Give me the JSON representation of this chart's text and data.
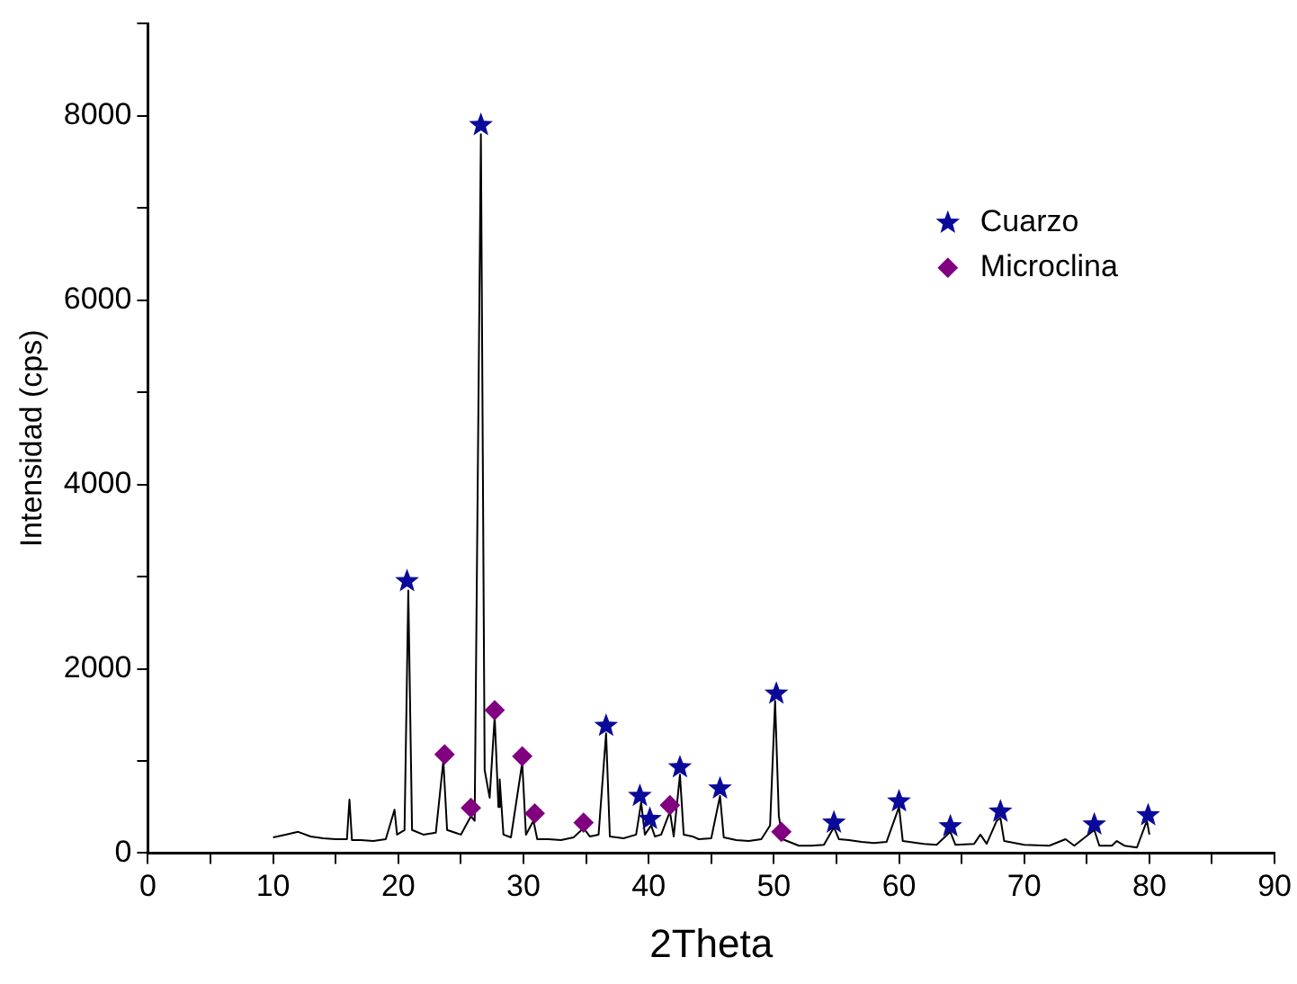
{
  "chart_data": {
    "type": "line",
    "xlabel": "2Theta",
    "ylabel": "Intensidad (cps)",
    "xlim": [
      0,
      90
    ],
    "ylim": [
      0,
      9000
    ],
    "xticks": [
      0,
      {
        "value": 5,
        "label": null
      },
      10,
      {
        "value": 15,
        "label": null
      },
      20,
      {
        "value": 25,
        "label": null
      },
      30,
      {
        "value": 35,
        "label": null
      },
      40,
      {
        "value": 45,
        "label": null
      },
      50,
      {
        "value": 55,
        "label": null
      },
      60,
      {
        "value": 65,
        "label": null
      },
      70,
      {
        "value": 75,
        "label": null
      },
      80,
      {
        "value": 85,
        "label": null
      },
      90
    ],
    "yticks": [
      0,
      {
        "value": 1000,
        "label": null
      },
      2000,
      {
        "value": 3000,
        "label": null
      },
      4000,
      {
        "value": 5000,
        "label": null
      },
      6000,
      {
        "value": 7000,
        "label": null
      },
      8000,
      {
        "value": 9000,
        "label": null
      }
    ],
    "grid": false,
    "legend": "top right",
    "line_style": "solid",
    "series": [
      {
        "color": "#000000",
        "marker": "none",
        "x": [
          10,
          11,
          12,
          13,
          14,
          15,
          15.9,
          16.1,
          16.3,
          17,
          18,
          19,
          19.7,
          19.9,
          20.5,
          20.8,
          21.1,
          22,
          23,
          23.6,
          23.9,
          25,
          25.8,
          26.1,
          26.6,
          26.9,
          27.3,
          27.7,
          28.0,
          28.1,
          28.4,
          29,
          29.9,
          30.2,
          30.8,
          31.1,
          32,
          33,
          34,
          34.8,
          35.3,
          36,
          36.6,
          36.9,
          38,
          39,
          39.4,
          39.7,
          40.2,
          40.5,
          41,
          41.7,
          42,
          42.5,
          42.8,
          43.5,
          44,
          45,
          45.7,
          46,
          47,
          48,
          49,
          49.7,
          50.1,
          50.4,
          50.7,
          52,
          53,
          54,
          54.8,
          55.2,
          56,
          57,
          58,
          59,
          60,
          60.3,
          62,
          63,
          64.1,
          64.5,
          66,
          66.5,
          67,
          67.8,
          68.1,
          68.4,
          70,
          72,
          73.3,
          74,
          75.6,
          76,
          77,
          77.4,
          78,
          79,
          79.8,
          80
        ],
        "values": [
          170,
          200,
          230,
          180,
          160,
          150,
          150,
          580,
          140,
          140,
          130,
          150,
          470,
          200,
          250,
          2850,
          250,
          200,
          220,
          1000,
          250,
          200,
          400,
          350,
          7800,
          900,
          600,
          1480,
          500,
          800,
          200,
          170,
          980,
          200,
          350,
          150,
          150,
          140,
          170,
          270,
          180,
          200,
          1300,
          180,
          160,
          200,
          550,
          200,
          300,
          180,
          200,
          450,
          180,
          850,
          200,
          180,
          150,
          160,
          620,
          170,
          140,
          130,
          150,
          300,
          1650,
          400,
          150,
          80,
          80,
          90,
          280,
          150,
          140,
          120,
          110,
          120,
          500,
          130,
          100,
          90,
          230,
          90,
          100,
          200,
          100,
          350,
          380,
          130,
          90,
          80,
          150,
          80,
          250,
          80,
          80,
          130,
          80,
          60,
          350,
          200
        ]
      },
      {
        "type": "scatter",
        "name": "Cuarzo",
        "color": "#0a0a9a",
        "marker": "star",
        "x": [
          20.7,
          26.6,
          36.6,
          39.3,
          40.1,
          42.5,
          45.7,
          50.2,
          54.8,
          60.0,
          64.1,
          68.1,
          75.6,
          79.9
        ],
        "values": [
          2950,
          7900,
          1380,
          620,
          370,
          930,
          700,
          1730,
          330,
          560,
          290,
          450,
          310,
          410
        ]
      },
      {
        "type": "scatter",
        "name": "Microclina",
        "color": "#800080",
        "marker": "diamond",
        "x": [
          23.7,
          25.8,
          27.7,
          29.9,
          30.9,
          34.8,
          41.7,
          50.6
        ],
        "values": [
          1070,
          490,
          1550,
          1050,
          430,
          330,
          520,
          230
        ]
      }
    ]
  }
}
